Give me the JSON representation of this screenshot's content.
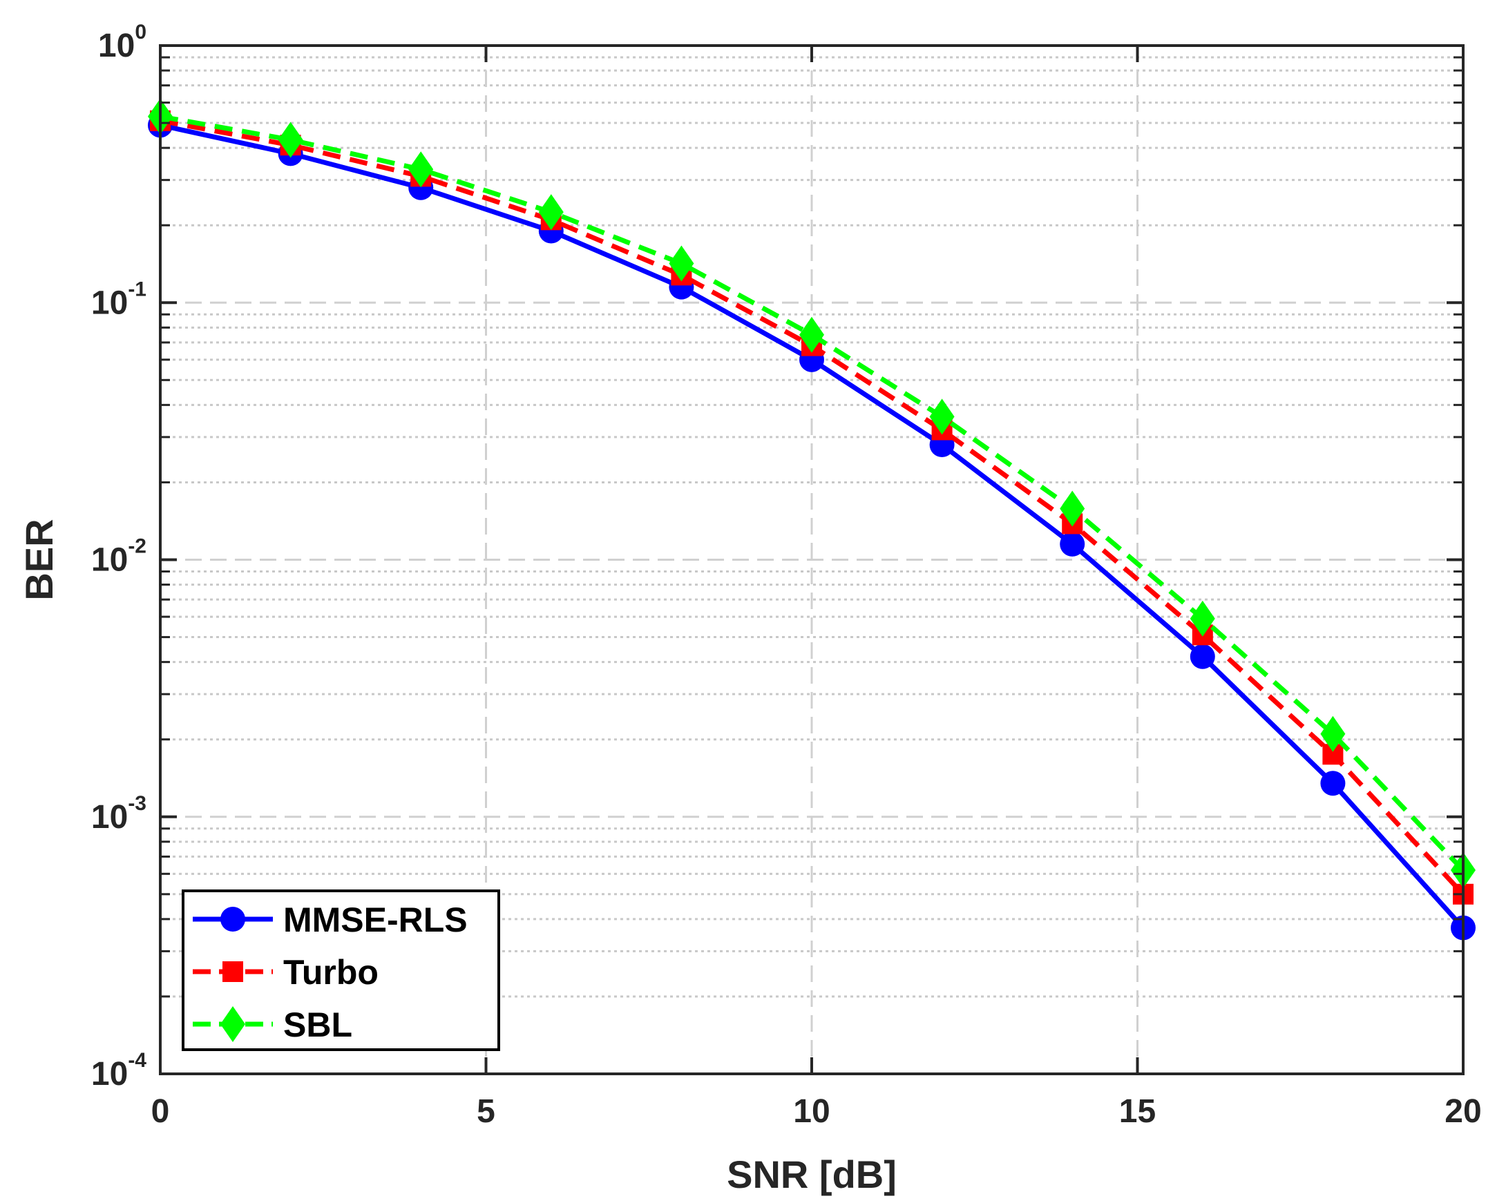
{
  "chart_data": {
    "type": "line",
    "xlabel": "SNR [dB]",
    "ylabel": "BER",
    "xlim": [
      0,
      20
    ],
    "ylim": [
      0.0001,
      1
    ],
    "yscale": "log",
    "grid": true,
    "legend_position": "bottom-left",
    "x_ticks": [
      "0",
      "5",
      "10",
      "15",
      "20"
    ],
    "y_ticks": [
      {
        "base": "10",
        "exp": "0"
      },
      {
        "base": "10",
        "exp": "-1"
      },
      {
        "base": "10",
        "exp": "-2"
      },
      {
        "base": "10",
        "exp": "-3"
      },
      {
        "base": "10",
        "exp": "-4"
      }
    ],
    "x": [
      0,
      2,
      4,
      6,
      8,
      10,
      12,
      14,
      16,
      18,
      20
    ],
    "series": [
      {
        "name": "MMSE-RLS",
        "color": "#0000ff",
        "marker": "circle",
        "line_style": "solid",
        "values": [
          0.49,
          0.38,
          0.28,
          0.19,
          0.115,
          0.06,
          0.028,
          0.0115,
          0.0042,
          0.00135,
          0.00037
        ]
      },
      {
        "name": "Turbo",
        "color": "#ff0000",
        "marker": "square",
        "line_style": "dashed",
        "values": [
          0.51,
          0.41,
          0.31,
          0.21,
          0.128,
          0.068,
          0.032,
          0.0138,
          0.0051,
          0.00175,
          0.0005
        ]
      },
      {
        "name": "SBL",
        "color": "#00ff00",
        "marker": "diamond",
        "line_style": "dashed",
        "values": [
          0.53,
          0.43,
          0.33,
          0.225,
          0.142,
          0.075,
          0.036,
          0.0158,
          0.0059,
          0.0021,
          0.00062
        ]
      }
    ]
  }
}
